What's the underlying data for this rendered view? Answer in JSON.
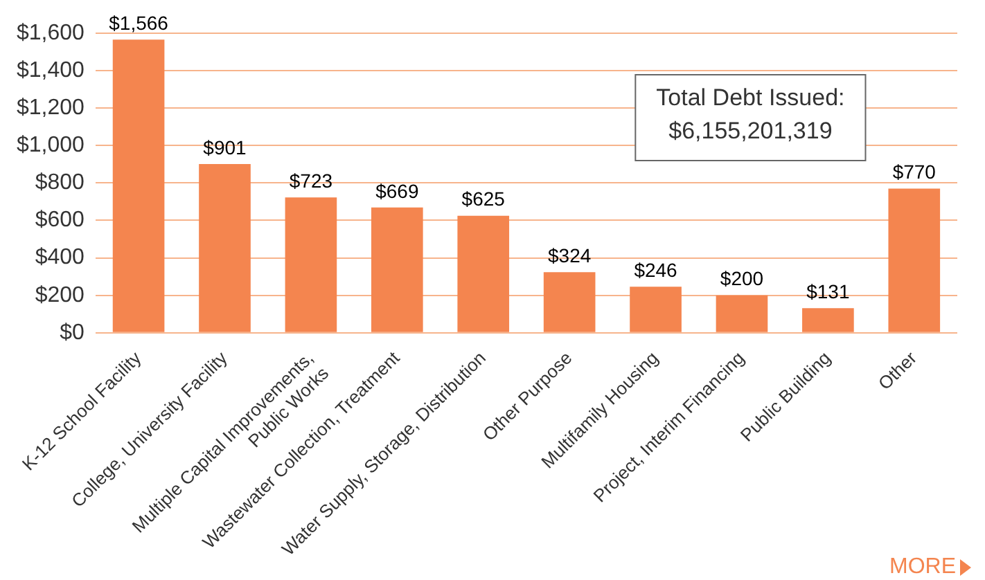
{
  "chart_data": {
    "type": "bar",
    "categories": [
      "K-12 School Facility",
      "College, University Facility",
      "Multiple Capital Improvements, Public Works",
      "Wastewater Collection, Treatment",
      "Water Supply, Storage, Distribution",
      "Other Purpose",
      "Multifamily Housing",
      "Project, Interim Financing",
      "Public Building",
      "Other"
    ],
    "values": [
      1566,
      901,
      723,
      669,
      625,
      324,
      246,
      200,
      131,
      770
    ],
    "value_labels": [
      "$1,566",
      "$901",
      "$723",
      "$669",
      "$625",
      "$324",
      "$246",
      "$200",
      "$131",
      "$770"
    ],
    "color": "#f4854f",
    "ylim": [
      0,
      1600
    ],
    "yticks": [
      {
        "value": 0,
        "label": "$0"
      },
      {
        "value": 200,
        "label": "$200"
      },
      {
        "value": 400,
        "label": "$400"
      },
      {
        "value": 600,
        "label": "$600"
      },
      {
        "value": 800,
        "label": "$800"
      },
      {
        "value": 1000,
        "label": "$1,000"
      },
      {
        "value": 1200,
        "label": "$1,200"
      },
      {
        "value": 1400,
        "label": "$1,400"
      },
      {
        "value": 1600,
        "label": "$1,600"
      }
    ],
    "grid": "y",
    "legend": false,
    "annotations": [
      "Total Debt Issued:\n$6,155,201,319",
      "MORE"
    ]
  }
}
